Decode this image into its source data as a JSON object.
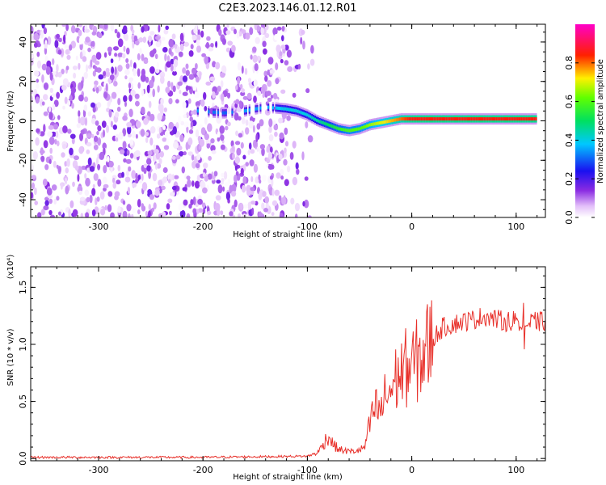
{
  "figure_title": "C2E3.2023.146.01.12.R01",
  "chart_data": [
    {
      "type": "heatmap",
      "xlabel": "Height of straight line (km)",
      "ylabel": "Frequency (Hz)",
      "xlim": [
        -365,
        128
      ],
      "ylim": [
        -49,
        49
      ],
      "xticks": [
        -300,
        -200,
        -100,
        0,
        100
      ],
      "yticks": [
        -40,
        -20,
        0,
        20,
        40
      ],
      "colorbar": {
        "label": "Normalized spectral amplitude",
        "range": [
          0,
          1
        ],
        "ticks": [
          0.0,
          0.2,
          0.4,
          0.6,
          0.8
        ],
        "tick_labels": [
          "0.0",
          "0.2",
          "0.4",
          "0.6",
          "0.8"
        ],
        "colormap": "rainbow (white-purple-blue-cyan-green-yellow-red-magenta)"
      },
      "noise_region": {
        "x_range": [
          -365,
          -120
        ],
        "freq_range": [
          -49,
          49
        ],
        "amplitude_approx": [
          0.0,
          0.12
        ]
      },
      "signal_track": {
        "x": [
          -205,
          -180,
          -160,
          -140,
          -120,
          -110,
          -100,
          -90,
          -80,
          -70,
          -60,
          -50,
          -40,
          -30,
          -20,
          -10,
          0,
          20,
          40,
          60,
          80,
          100,
          120
        ],
        "freq": [
          5,
          4,
          5,
          7,
          6,
          5,
          3,
          0,
          -2,
          -4,
          -5,
          -4,
          -2,
          -1,
          0,
          1,
          1,
          1,
          1,
          1,
          1,
          1,
          1
        ],
        "amplitude": [
          0.35,
          0.3,
          0.35,
          0.35,
          0.4,
          0.4,
          0.4,
          0.45,
          0.5,
          0.55,
          0.6,
          0.6,
          0.65,
          0.7,
          0.75,
          0.8,
          0.85,
          0.85,
          0.85,
          0.85,
          0.85,
          0.85,
          0.85
        ]
      }
    },
    {
      "type": "line",
      "xlabel": "Height of straight line (km)",
      "ylabel": "SNR (10 * v/v)",
      "scale_label": "(x10⁴)",
      "xlim": [
        -365,
        128
      ],
      "ylim": [
        -0.02,
        1.68
      ],
      "xticks": [
        -300,
        -200,
        -100,
        0,
        100
      ],
      "yticks": [
        0.0,
        0.5,
        1.0,
        1.5
      ],
      "ytick_labels": [
        "0.0",
        "0.5",
        "1.0",
        "1.5"
      ],
      "series": [
        {
          "color": "#e8302a",
          "x": [
            -365,
            -300,
            -200,
            -100,
            -90,
            -80,
            -75,
            -70,
            -60,
            -50,
            -45,
            -40,
            -35,
            -30,
            -25,
            -20,
            -15,
            -10,
            -5,
            0,
            10,
            20,
            30,
            40,
            50,
            60,
            70,
            80,
            90,
            100,
            110,
            120,
            128
          ],
          "y": [
            0.01,
            0.01,
            0.01,
            0.02,
            0.05,
            0.2,
            0.12,
            0.08,
            0.06,
            0.07,
            0.1,
            0.3,
            0.45,
            0.4,
            0.55,
            0.6,
            0.7,
            0.75,
            0.8,
            0.8,
            0.9,
            1.05,
            1.15,
            1.18,
            1.2,
            1.22,
            1.25,
            1.22,
            1.2,
            1.22,
            1.18,
            1.2,
            1.2
          ]
        }
      ]
    }
  ]
}
